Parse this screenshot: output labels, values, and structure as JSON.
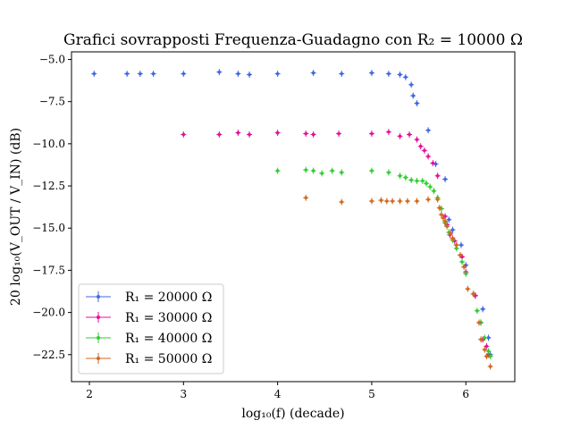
{
  "chart_data": {
    "type": "scatter",
    "title": "Grafici sovrapposti Frequenza-Guadagno con R₂ = 10000 Ω",
    "xlabel": "log₁₀(f) (decade)",
    "ylabel": "20 log₁₀(V_OUT / V_IN) (dB)",
    "xlim": [
      1.81,
      6.52
    ],
    "ylim": [
      -24.1,
      -4.55
    ],
    "xticks": [
      "2",
      "3",
      "4",
      "5",
      "6"
    ],
    "yticks": [
      "−5.0",
      "−7.5",
      "−10.0",
      "−12.5",
      "−15.0",
      "−17.5",
      "−20.0",
      "−22.5"
    ],
    "xtick_values": [
      2,
      3,
      4,
      5,
      6
    ],
    "ytick_values": [
      -5.0,
      -7.5,
      -10.0,
      -12.5,
      -15.0,
      -17.5,
      -20.0,
      -22.5
    ],
    "grid": false,
    "legend_position": "lower-left",
    "series": [
      {
        "name": "R₁ = 20000 Ω",
        "color": "#4169e1",
        "points": [
          [
            2.05,
            -5.85
          ],
          [
            2.4,
            -5.85
          ],
          [
            2.54,
            -5.85
          ],
          [
            2.68,
            -5.85
          ],
          [
            3.0,
            -5.85
          ],
          [
            3.38,
            -5.75
          ],
          [
            3.58,
            -5.85
          ],
          [
            3.7,
            -5.9
          ],
          [
            4.0,
            -5.85
          ],
          [
            4.38,
            -5.8
          ],
          [
            4.68,
            -5.85
          ],
          [
            5.0,
            -5.8
          ],
          [
            5.18,
            -5.85
          ],
          [
            5.3,
            -5.9
          ],
          [
            5.36,
            -6.05
          ],
          [
            5.42,
            -6.5
          ],
          [
            5.44,
            -7.15
          ],
          [
            5.48,
            -7.6
          ],
          [
            5.6,
            -9.2
          ],
          [
            5.68,
            -11.2
          ],
          [
            5.78,
            -12.1
          ],
          [
            5.82,
            -14.5
          ],
          [
            5.86,
            -15.1
          ],
          [
            5.95,
            -16.0
          ],
          [
            6.0,
            -17.2
          ],
          [
            6.1,
            -19.0
          ],
          [
            6.18,
            -19.8
          ],
          [
            6.24,
            -21.5
          ],
          [
            6.26,
            -22.5
          ]
        ]
      },
      {
        "name": "R₁ = 30000 Ω",
        "color": "#e6119a",
        "points": [
          [
            3.0,
            -9.45
          ],
          [
            3.38,
            -9.45
          ],
          [
            3.58,
            -9.35
          ],
          [
            3.7,
            -9.45
          ],
          [
            4.0,
            -9.35
          ],
          [
            4.3,
            -9.4
          ],
          [
            4.38,
            -9.45
          ],
          [
            4.65,
            -9.4
          ],
          [
            5.0,
            -9.4
          ],
          [
            5.18,
            -9.3
          ],
          [
            5.3,
            -9.55
          ],
          [
            5.4,
            -9.45
          ],
          [
            5.48,
            -9.75
          ],
          [
            5.52,
            -10.15
          ],
          [
            5.56,
            -10.4
          ],
          [
            5.6,
            -10.75
          ],
          [
            5.65,
            -11.15
          ],
          [
            5.7,
            -11.9
          ],
          [
            5.78,
            -14.3
          ],
          [
            5.8,
            -14.8
          ],
          [
            5.83,
            -15.4
          ],
          [
            5.88,
            -15.75
          ],
          [
            5.9,
            -16.0
          ],
          [
            5.96,
            -16.7
          ],
          [
            6.0,
            -17.6
          ],
          [
            6.1,
            -19.0
          ],
          [
            6.16,
            -20.6
          ],
          [
            6.18,
            -21.6
          ],
          [
            6.22,
            -22.0
          ],
          [
            6.24,
            -22.5
          ]
        ]
      },
      {
        "name": "R₁ = 40000 Ω",
        "color": "#32cd32",
        "points": [
          [
            4.0,
            -11.6
          ],
          [
            4.3,
            -11.55
          ],
          [
            4.38,
            -11.6
          ],
          [
            4.47,
            -11.75
          ],
          [
            4.58,
            -11.6
          ],
          [
            4.68,
            -11.7
          ],
          [
            5.0,
            -11.6
          ],
          [
            5.18,
            -11.7
          ],
          [
            5.3,
            -11.9
          ],
          [
            5.36,
            -12.0
          ],
          [
            5.42,
            -12.15
          ],
          [
            5.48,
            -12.2
          ],
          [
            5.54,
            -12.2
          ],
          [
            5.58,
            -12.35
          ],
          [
            5.62,
            -12.55
          ],
          [
            5.66,
            -12.8
          ],
          [
            5.7,
            -13.2
          ],
          [
            5.74,
            -13.85
          ],
          [
            5.78,
            -14.7
          ],
          [
            5.82,
            -15.25
          ],
          [
            5.86,
            -15.7
          ],
          [
            5.9,
            -16.2
          ],
          [
            5.96,
            -17.0
          ],
          [
            6.0,
            -17.7
          ],
          [
            6.08,
            -18.9
          ],
          [
            6.12,
            -19.9
          ],
          [
            6.16,
            -20.6
          ],
          [
            6.2,
            -21.5
          ],
          [
            6.24,
            -22.3
          ],
          [
            6.26,
            -22.6
          ]
        ]
      },
      {
        "name": "R₁ = 50000 Ω",
        "color": "#d2691e",
        "points": [
          [
            4.3,
            -13.2
          ],
          [
            4.68,
            -13.45
          ],
          [
            5.0,
            -13.4
          ],
          [
            5.1,
            -13.35
          ],
          [
            5.16,
            -13.4
          ],
          [
            5.22,
            -13.4
          ],
          [
            5.3,
            -13.4
          ],
          [
            5.38,
            -13.4
          ],
          [
            5.48,
            -13.4
          ],
          [
            5.6,
            -13.3
          ],
          [
            5.7,
            -13.3
          ],
          [
            5.72,
            -13.8
          ],
          [
            5.74,
            -14.2
          ],
          [
            5.76,
            -14.4
          ],
          [
            5.78,
            -14.6
          ],
          [
            5.8,
            -14.9
          ],
          [
            5.84,
            -15.3
          ],
          [
            5.86,
            -15.6
          ],
          [
            5.9,
            -16.0
          ],
          [
            5.94,
            -16.6
          ],
          [
            5.98,
            -17.3
          ],
          [
            6.02,
            -18.6
          ],
          [
            6.08,
            -18.9
          ],
          [
            6.14,
            -20.6
          ],
          [
            6.16,
            -21.6
          ],
          [
            6.2,
            -22.2
          ],
          [
            6.22,
            -22.6
          ],
          [
            6.26,
            -23.2
          ]
        ]
      }
    ]
  }
}
